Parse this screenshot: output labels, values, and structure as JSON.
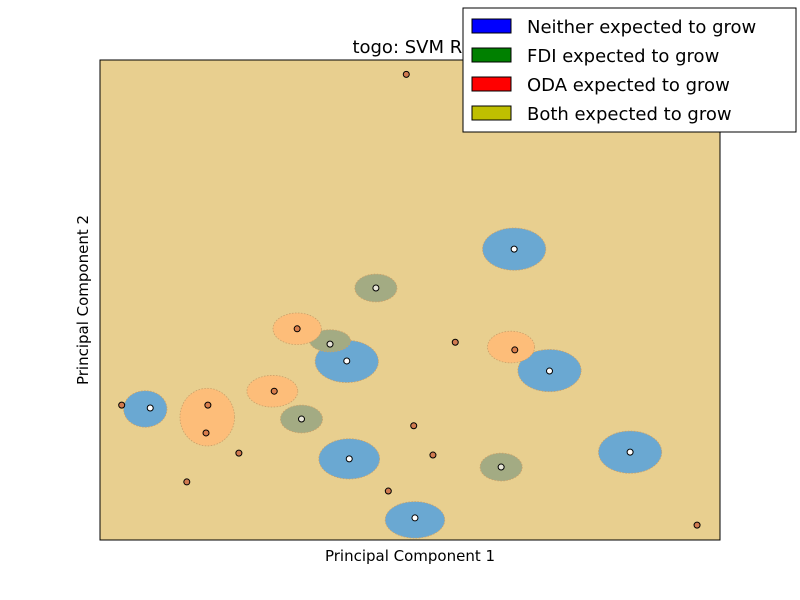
{
  "chart_data": {
    "type": "scatter",
    "title": "togo: SVM RBF",
    "title_visible": "togo: SVM RI",
    "xlabel": "Principal Component 1",
    "ylabel": "Principal Component 2",
    "xlim": [
      0,
      100
    ],
    "ylim": [
      0,
      100
    ],
    "ticks_visible": false,
    "grid": false,
    "legend_placement": "top-right",
    "background_color": "#e8cf8f",
    "region_colors": {
      "neither": "#6aa8d2",
      "fdi": "#a3ab83",
      "oda": "#fdbd79"
    },
    "legend": [
      {
        "label": "Neither expected to grow",
        "color": "#0000ff"
      },
      {
        "label": "FDI expected to grow",
        "color": "#008000"
      },
      {
        "label": "ODA expected to grow",
        "color": "#ff0000"
      },
      {
        "label": "Both expected to grow",
        "color": "#bfbf00"
      }
    ],
    "regions": [
      {
        "class": "neither",
        "x": 66.8,
        "y": 60.6,
        "rx": 5.1,
        "ry": 4.4
      },
      {
        "class": "neither",
        "x": 39.8,
        "y": 37.2,
        "rx": 5.1,
        "ry": 4.4
      },
      {
        "class": "neither",
        "x": 72.5,
        "y": 35.3,
        "rx": 5.1,
        "ry": 4.4
      },
      {
        "class": "neither",
        "x": 85.5,
        "y": 18.3,
        "rx": 5.1,
        "ry": 4.4
      },
      {
        "class": "neither",
        "x": 40.2,
        "y": 16.9,
        "rx": 4.9,
        "ry": 4.2
      },
      {
        "class": "neither",
        "x": 7.3,
        "y": 27.3,
        "rx": 3.5,
        "ry": 3.8
      },
      {
        "class": "neither",
        "x": 50.8,
        "y": 4.2,
        "rx": 4.8,
        "ry": 3.8
      },
      {
        "class": "fdi",
        "x": 44.5,
        "y": 52.5,
        "rx": 3.4,
        "ry": 2.9
      },
      {
        "class": "fdi",
        "x": 37.1,
        "y": 41.5,
        "rx": 3.3,
        "ry": 2.3
      },
      {
        "class": "fdi",
        "x": 32.5,
        "y": 25.2,
        "rx": 3.4,
        "ry": 2.9
      },
      {
        "class": "fdi",
        "x": 64.7,
        "y": 15.2,
        "rx": 3.4,
        "ry": 2.9
      },
      {
        "class": "oda",
        "x": 31.8,
        "y": 44.0,
        "rx": 3.9,
        "ry": 3.3
      },
      {
        "class": "oda",
        "x": 66.3,
        "y": 40.2,
        "rx": 3.8,
        "ry": 3.3
      },
      {
        "class": "oda",
        "x": 27.8,
        "y": 31.0,
        "rx": 4.1,
        "ry": 3.3
      },
      {
        "class": "oda",
        "x": 17.3,
        "y": 25.6,
        "rx": 4.4,
        "ry": 6.0
      }
    ],
    "points": [
      {
        "x": 49.4,
        "y": 97.0,
        "class": "background"
      },
      {
        "x": 66.8,
        "y": 60.6,
        "class": "neither"
      },
      {
        "x": 44.5,
        "y": 52.5,
        "class": "fdi"
      },
      {
        "x": 31.8,
        "y": 44.0,
        "class": "oda"
      },
      {
        "x": 37.1,
        "y": 40.8,
        "class": "fdi"
      },
      {
        "x": 57.3,
        "y": 41.2,
        "class": "background"
      },
      {
        "x": 66.9,
        "y": 39.6,
        "class": "oda"
      },
      {
        "x": 39.8,
        "y": 37.3,
        "class": "neither"
      },
      {
        "x": 72.5,
        "y": 35.2,
        "class": "neither"
      },
      {
        "x": 28.1,
        "y": 31.0,
        "class": "oda"
      },
      {
        "x": 3.5,
        "y": 28.1,
        "class": "background"
      },
      {
        "x": 17.4,
        "y": 28.1,
        "class": "oda"
      },
      {
        "x": 8.1,
        "y": 27.5,
        "class": "neither"
      },
      {
        "x": 32.5,
        "y": 25.2,
        "class": "fdi"
      },
      {
        "x": 17.1,
        "y": 22.3,
        "class": "oda"
      },
      {
        "x": 50.6,
        "y": 23.8,
        "class": "background"
      },
      {
        "x": 22.4,
        "y": 18.1,
        "class": "background"
      },
      {
        "x": 85.5,
        "y": 18.3,
        "class": "neither"
      },
      {
        "x": 53.7,
        "y": 17.7,
        "class": "background"
      },
      {
        "x": 40.2,
        "y": 16.9,
        "class": "neither"
      },
      {
        "x": 64.7,
        "y": 15.2,
        "class": "fdi"
      },
      {
        "x": 14.0,
        "y": 12.1,
        "class": "background"
      },
      {
        "x": 46.5,
        "y": 10.2,
        "class": "background"
      },
      {
        "x": 50.8,
        "y": 4.6,
        "class": "neither"
      },
      {
        "x": 96.3,
        "y": 3.1,
        "class": "background"
      }
    ]
  }
}
